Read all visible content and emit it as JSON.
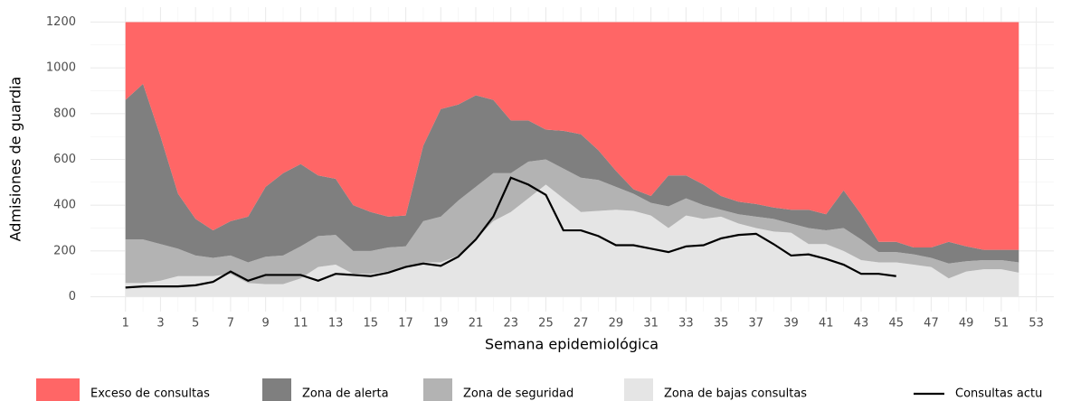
{
  "chart_data": {
    "type": "area",
    "x": [
      1,
      2,
      3,
      4,
      5,
      6,
      7,
      8,
      9,
      10,
      11,
      12,
      13,
      14,
      15,
      16,
      17,
      18,
      19,
      20,
      21,
      22,
      23,
      24,
      25,
      26,
      27,
      28,
      29,
      30,
      31,
      32,
      33,
      34,
      35,
      36,
      37,
      38,
      39,
      40,
      41,
      42,
      43,
      44,
      45,
      46,
      47,
      48,
      49,
      50,
      51,
      52
    ],
    "x_label": "Semana epidemiológica",
    "y_label": "Admisiones de guardia",
    "xlim": [
      -1,
      54
    ],
    "xticks": [
      1,
      3,
      5,
      7,
      9,
      11,
      13,
      15,
      17,
      19,
      21,
      23,
      25,
      27,
      29,
      31,
      33,
      35,
      37,
      39,
      41,
      43,
      45,
      47,
      49,
      51,
      53
    ],
    "ylim": [
      -65,
      1265
    ],
    "yticks": [
      0,
      200,
      400,
      600,
      800,
      1000,
      1200
    ],
    "grid": true,
    "stacked": true,
    "legend_position": "bottom",
    "series": [
      {
        "name": "Exceso de consultas",
        "color": "#ff6666",
        "values": [
          340,
          270,
          500,
          750,
          860,
          910,
          870,
          850,
          720,
          660,
          620,
          670,
          685,
          800,
          830,
          850,
          845,
          540,
          380,
          360,
          320,
          340,
          430,
          430,
          470,
          475,
          490,
          560,
          650,
          730,
          760,
          670,
          670,
          710,
          760,
          785,
          795,
          810,
          820,
          820,
          840,
          735,
          840,
          960,
          960,
          985,
          985,
          960,
          980,
          995,
          995,
          995
        ]
      },
      {
        "name": "Zona de alerta",
        "color": "#7f7f7f",
        "values": [
          610,
          680,
          470,
          240,
          160,
          120,
          150,
          200,
          305,
          360,
          360,
          265,
          245,
          200,
          170,
          135,
          135,
          330,
          470,
          420,
          400,
          320,
          230,
          180,
          130,
          165,
          190,
          130,
          70,
          20,
          30,
          135,
          100,
          90,
          60,
          55,
          55,
          50,
          60,
          80,
          70,
          165,
          110,
          45,
          45,
          30,
          45,
          95,
          65,
          45,
          45,
          55
        ]
      },
      {
        "name": "Zona de seguridad",
        "color": "#b3b3b3",
        "values": [
          190,
          190,
          160,
          120,
          90,
          80,
          80,
          90,
          120,
          125,
          140,
          135,
          130,
          100,
          100,
          105,
          90,
          180,
          200,
          240,
          230,
          210,
          170,
          160,
          110,
          130,
          150,
          135,
          100,
          75,
          55,
          95,
          75,
          60,
          30,
          40,
          50,
          55,
          40,
          70,
          60,
          100,
          90,
          45,
          45,
          45,
          40,
          65,
          45,
          40,
          40,
          45
        ]
      },
      {
        "name": "Zona de bajas consultas",
        "color": "#e5e5e5",
        "values": [
          60,
          60,
          70,
          90,
          90,
          90,
          100,
          60,
          55,
          55,
          80,
          130,
          140,
          100,
          100,
          110,
          130,
          150,
          150,
          180,
          250,
          330,
          370,
          430,
          490,
          430,
          370,
          375,
          380,
          375,
          355,
          300,
          355,
          340,
          350,
          320,
          300,
          285,
          280,
          230,
          230,
          200,
          160,
          150,
          150,
          140,
          130,
          80,
          110,
          120,
          120,
          105
        ]
      },
      {
        "name": "Consultas actu",
        "color": "#000000",
        "type": "line",
        "values": [
          40,
          45,
          45,
          45,
          50,
          65,
          110,
          70,
          95,
          95,
          95,
          70,
          100,
          95,
          90,
          105,
          130,
          145,
          135,
          175,
          250,
          350,
          520,
          490,
          445,
          290,
          290,
          265,
          225,
          225,
          210,
          195,
          220,
          225,
          255,
          270,
          275,
          230,
          180,
          185,
          165,
          140,
          100,
          100,
          90,
          null,
          null,
          null,
          null,
          null,
          null,
          null
        ]
      }
    ]
  }
}
